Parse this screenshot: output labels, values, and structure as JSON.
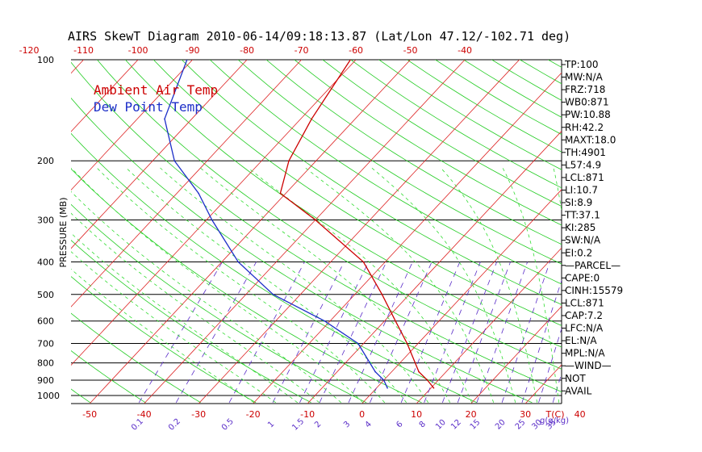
{
  "title": "AIRS SkewT Diagram 2010-06-14/09:18:13.87 (Lat/Lon 47.12/-102.71 deg)",
  "chart_data": {
    "type": "line",
    "title": "AIRS SkewT Diagram 2010-06-14/09:18:13.87 (Lat/Lon 47.12/-102.71 deg)",
    "ylabel": "PRESSURE (MB)",
    "xlabel": "T(C)",
    "y_scale": "log",
    "ylim": [
      1050,
      100
    ],
    "pressure_ticks": [
      100,
      200,
      300,
      400,
      500,
      600,
      700,
      800,
      900,
      1000
    ],
    "top_temperature_ticks": [
      -120,
      -110,
      -100,
      -90,
      -80,
      -70,
      -60,
      -50,
      -40
    ],
    "bottom_temperature_ticks": [
      -50,
      -40,
      -30,
      -20,
      -10,
      0,
      10,
      20,
      30,
      40
    ],
    "mixing_ratio_ticks": [
      "0.1",
      "0.2",
      "0.5",
      "1",
      "1.5",
      "2",
      "3",
      "4",
      "6",
      "8",
      "10",
      "12",
      "15",
      "20",
      "25",
      "30",
      "35"
    ],
    "mixing_ratio_unit_label": "g(g/kg)",
    "series": [
      {
        "name": "Ambient Air Temp",
        "color": "#cc0000",
        "points": [
          {
            "p": 950,
            "t": 10.5
          },
          {
            "p": 900,
            "t": 8.0
          },
          {
            "p": 850,
            "t": 5.0
          },
          {
            "p": 700,
            "t": -2.0
          },
          {
            "p": 600,
            "t": -8.0
          },
          {
            "p": 500,
            "t": -15.0
          },
          {
            "p": 400,
            "t": -24.0
          },
          {
            "p": 300,
            "t": -40.0
          },
          {
            "p": 250,
            "t": -51.0
          },
          {
            "p": 200,
            "t": -55.0
          },
          {
            "p": 150,
            "t": -58.0
          },
          {
            "p": 100,
            "t": -61.0
          }
        ]
      },
      {
        "name": "Dew Point Temp",
        "color": "#1d2fc8",
        "points": [
          {
            "p": 950,
            "t": 2.0
          },
          {
            "p": 900,
            "t": 0.0
          },
          {
            "p": 850,
            "t": -3.0
          },
          {
            "p": 700,
            "t": -11.0
          },
          {
            "p": 600,
            "t": -21.0
          },
          {
            "p": 500,
            "t": -35.0
          },
          {
            "p": 400,
            "t": -47.0
          },
          {
            "p": 300,
            "t": -59.0
          },
          {
            "p": 250,
            "t": -66.0
          },
          {
            "p": 200,
            "t": -76.0
          },
          {
            "p": 150,
            "t": -85.0
          },
          {
            "p": 100,
            "t": -91.0
          }
        ]
      }
    ],
    "legend": [
      "Ambient Air Temp",
      "Dew Point Temp"
    ],
    "legend_position": "top-left",
    "grid": true
  },
  "indices": [
    "TP:100",
    "MW:N/A",
    "FRZ:718",
    "WB0:871",
    "PW:10.88",
    "RH:42.2",
    "MAXT:18.0",
    "TH:4901",
    "L57:4.9",
    "LCL:871",
    "LI:10.7",
    "SI:8.9",
    "TT:37.1",
    "KI:285",
    "SW:N/A",
    "EI:0.2",
    "—PARCEL—",
    "CAPE:0",
    "CINH:15579",
    "LCL:871",
    "CAP:7.2",
    "LFC:N/A",
    "EL:N/A",
    "MPL:N/A",
    "—WIND—",
    "NOT",
    "AVAIL"
  ],
  "colors": {
    "isotherm": "#dd2222",
    "dry_adiabat": "#22cc22",
    "moist_adiabat": "#33dd33",
    "mixing_ratio": "#5a2dc8",
    "temperature": "#cc0000",
    "dewpoint": "#1d2fc8"
  }
}
